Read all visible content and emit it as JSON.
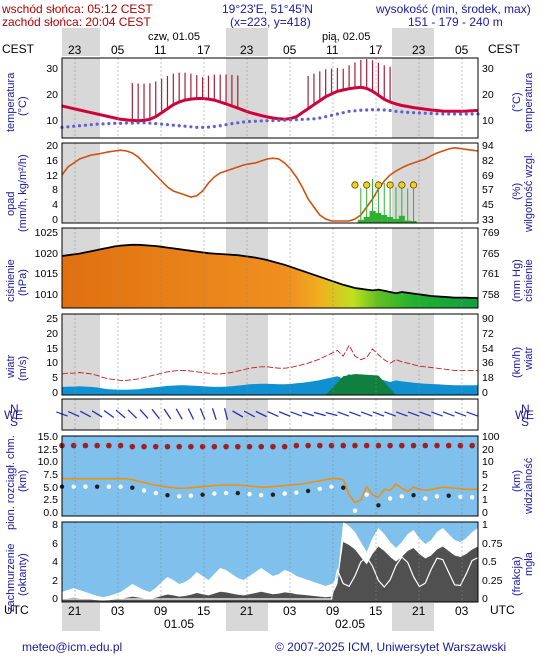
{
  "header": {
    "sunrise": "wschód słońca: 05:12 CEST",
    "sunset": "zachód słońca: 20:04 CEST",
    "coords": "19°23'E, 51°45'N",
    "grid": "(x=223,  y=418)",
    "elev_title": "wysokość (min, środek, max)",
    "elev_values": "151 - 179 - 240 m"
  },
  "top_axis": {
    "tz_left": "CEST",
    "tz_right": "CEST",
    "day1": "czw, 01.05",
    "day2": "pią, 02.05",
    "hours": [
      "23",
      "05",
      "11",
      "17",
      "23",
      "05",
      "11",
      "17",
      "23",
      "05"
    ]
  },
  "bottom_axis": {
    "tz_left": "UTC",
    "tz_right": "UTC",
    "hours": [
      "21",
      "03",
      "09",
      "15",
      "21",
      "03",
      "09",
      "15",
      "21",
      "03"
    ],
    "date1": "01.05",
    "date2": "02.05"
  },
  "panels": {
    "temp": {
      "left_label": "temperatura",
      "left_unit": "(°C)",
      "right_label": "(°C)",
      "right_unit": "temperatura",
      "ticks": [
        "30",
        "20",
        "10"
      ]
    },
    "precip": {
      "left_label": "opad",
      "left_unit": "(mm/h, kg/m²/h)",
      "right_label": "(%)",
      "right_unit": "wilgotność wzgl.",
      "left_ticks": [
        "20",
        "16",
        "12",
        "8",
        "4",
        "0"
      ],
      "right_ticks": [
        "94",
        "82",
        "69",
        "57",
        "45",
        "33"
      ]
    },
    "pressure": {
      "left_label": "ciśnienie",
      "left_unit": "(hPa)",
      "right_label": "(mm Hg)",
      "right_unit": "ciśnienie",
      "left_ticks": [
        "1025",
        "1020",
        "1015",
        "1010"
      ],
      "right_ticks": [
        "769",
        "765",
        "761",
        "758"
      ]
    },
    "wind": {
      "left_label": "wiatr",
      "left_unit": "(m/s)",
      "right_label": "(km/h)",
      "right_unit": "wiatr",
      "left_ticks": [
        "25",
        "20",
        "15",
        "10",
        "5",
        "0"
      ],
      "right_ticks": [
        "90",
        "72",
        "54",
        "36",
        "18",
        "0"
      ]
    },
    "direction": {
      "n": "N",
      "s": "S",
      "w": "W",
      "e": "E"
    },
    "visibility": {
      "left_label": "pion. rozciągł. chm.",
      "left_unit": "(km)",
      "right_label": "(km)",
      "right_unit": "widzialność",
      "left_ticks": [
        "15.0",
        "12.5",
        "10.0",
        "7.5",
        "5.0",
        "2.5",
        "0.0"
      ],
      "right_ticks": [
        "100",
        "20",
        "10",
        "5",
        "2",
        "1",
        "0"
      ]
    },
    "cloud": {
      "left_label": "zachmurzenie",
      "left_unit": "(oktanty)",
      "right_label": "(frakcja)",
      "right_unit": "mgła",
      "left_ticks": [
        "8",
        "6",
        "4",
        "2",
        "0"
      ],
      "right_ticks": [
        "1",
        "0.75",
        "0.5",
        "0.25",
        "0"
      ]
    }
  },
  "footer": {
    "email": "meteo@icm.edu.pl",
    "copyright": "© 2007-2025 ICM, Uniwersytet Warszawski"
  },
  "colors": {
    "frame": "#000000",
    "night": "#d8d8d8",
    "temp_line": "#d0003a",
    "dew": "#6060d0",
    "humidity": "#d05010",
    "precip": "#30b030",
    "pressure_line": "#000000",
    "wind_fill": "#1090d0",
    "sky": "#7fc0ec",
    "cloud_dark": "#505050"
  }
}
